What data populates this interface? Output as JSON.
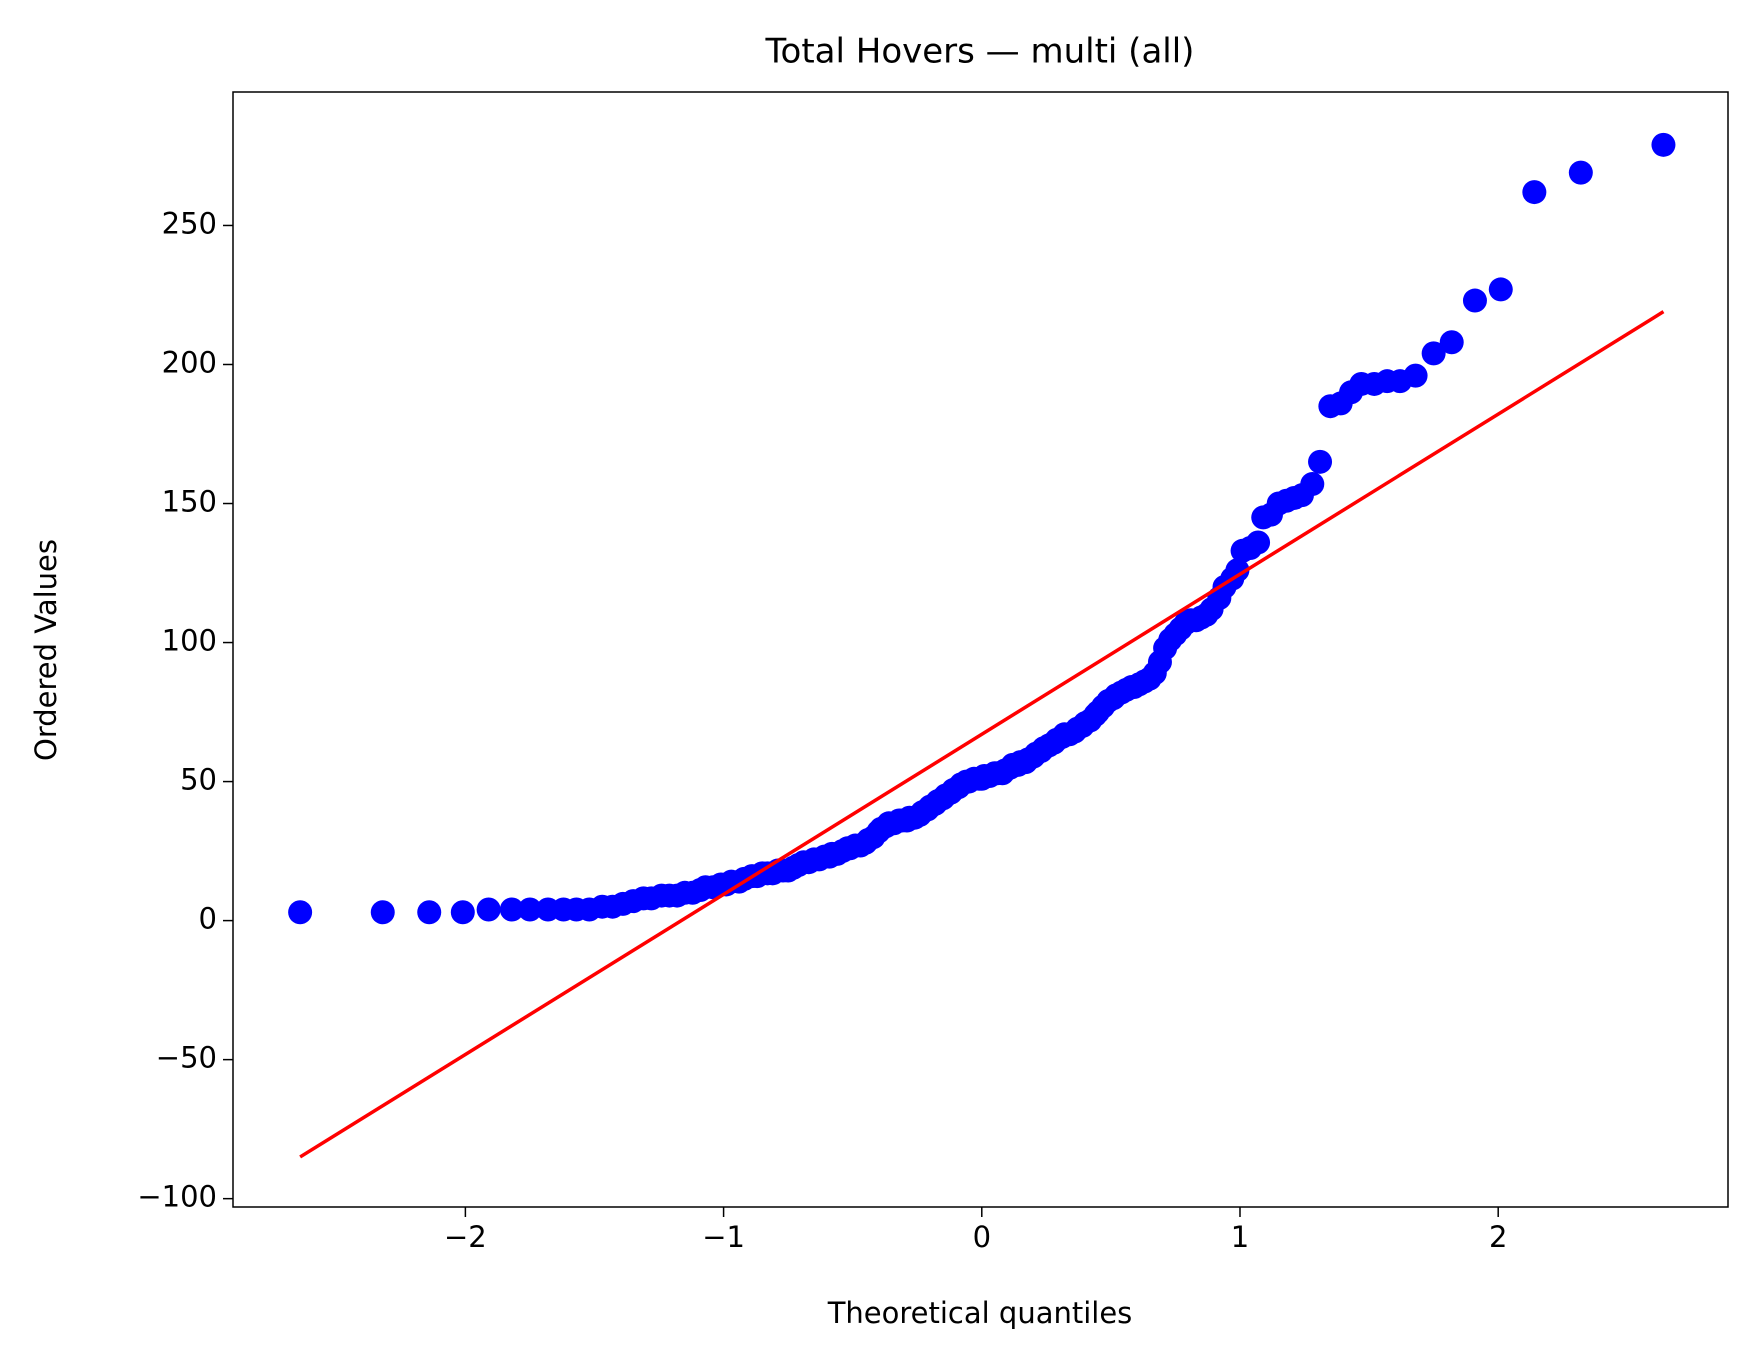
{
  "chart_data": {
    "type": "qq",
    "title": "Total Hovers — multi (all)",
    "x_label": "Theoretical quantiles",
    "y_label": "Ordered Values",
    "xlim": [
      -2.9,
      2.89
    ],
    "ylim": [
      -103,
      298
    ],
    "xticks": [
      {
        "value": -2,
        "label": "−2"
      },
      {
        "value": -1,
        "label": "−1"
      },
      0,
      1,
      2
    ],
    "yticks": [
      {
        "value": -100,
        "label": "−100"
      },
      {
        "value": -50,
        "label": "−50"
      },
      0,
      50,
      100,
      150,
      200,
      250
    ],
    "points": {
      "color": "#0000ff",
      "x": [
        -2.64,
        -2.32,
        -2.14,
        -2.01,
        -1.91,
        -1.82,
        -1.75,
        -1.68,
        -1.62,
        -1.57,
        -1.52,
        -1.47,
        -1.43,
        -1.39,
        -1.35,
        -1.31,
        -1.28,
        -1.24,
        -1.21,
        -1.18,
        -1.15,
        -1.12,
        -1.09,
        -1.07,
        -1.04,
        -1.01,
        -0.99,
        -0.97,
        -0.94,
        -0.92,
        -0.89,
        -0.87,
        -0.85,
        -0.83,
        -0.81,
        -0.79,
        -0.77,
        -0.75,
        -0.73,
        -0.71,
        -0.69,
        -0.67,
        -0.65,
        -0.63,
        -0.61,
        -0.59,
        -0.58,
        -0.56,
        -0.54,
        -0.52,
        -0.51,
        -0.49,
        -0.47,
        -0.45,
        -0.44,
        -0.42,
        -0.4,
        -0.39,
        -0.37,
        -0.36,
        -0.34,
        -0.32,
        -0.31,
        -0.29,
        -0.28,
        -0.26,
        -0.24,
        -0.23,
        -0.21,
        -0.2,
        -0.18,
        -0.17,
        -0.15,
        -0.14,
        -0.12,
        -0.11,
        -0.09,
        -0.08,
        -0.06,
        -0.05,
        -0.03,
        -0.01,
        0,
        0.01,
        0.03,
        0.05,
        0.06,
        0.08,
        0.09,
        0.11,
        0.12,
        0.14,
        0.15,
        0.17,
        0.18,
        0.2,
        0.21,
        0.23,
        0.24,
        0.26,
        0.28,
        0.29,
        0.31,
        0.32,
        0.34,
        0.36,
        0.37,
        0.39,
        0.4,
        0.42,
        0.44,
        0.45,
        0.47,
        0.49,
        0.51,
        0.52,
        0.54,
        0.56,
        0.58,
        0.59,
        0.61,
        0.63,
        0.65,
        0.67,
        0.69,
        0.71,
        0.73,
        0.75,
        0.77,
        0.79,
        0.81,
        0.83,
        0.85,
        0.87,
        0.89,
        0.92,
        0.94,
        0.97,
        0.99,
        1.01,
        1.04,
        1.07,
        1.09,
        1.12,
        1.15,
        1.18,
        1.21,
        1.24,
        1.28,
        1.31,
        1.35,
        1.39,
        1.43,
        1.47,
        1.52,
        1.57,
        1.62,
        1.68,
        1.75,
        1.82,
        1.91,
        2.01,
        2.14,
        2.32,
        2.64
      ],
      "values": [
        3,
        3,
        3,
        3,
        4,
        4,
        4,
        4,
        4,
        4,
        4,
        5,
        5,
        6,
        7,
        8,
        8,
        9,
        9,
        9,
        10,
        10,
        11,
        12,
        12,
        13,
        13,
        14,
        14,
        15,
        16,
        16,
        17,
        17,
        17,
        18,
        18,
        18,
        19,
        20,
        21,
        21,
        22,
        22,
        23,
        23,
        24,
        24,
        25,
        26,
        26,
        27,
        27,
        28,
        29,
        30,
        32,
        33,
        34,
        35,
        35,
        36,
        36,
        36,
        37,
        37,
        38,
        39,
        40,
        41,
        42,
        43,
        44,
        45,
        46,
        47,
        48,
        49,
        50,
        50,
        51,
        51,
        51,
        52,
        52,
        53,
        53,
        53,
        54,
        55,
        56,
        56,
        57,
        57,
        58,
        59,
        60,
        61,
        62,
        63,
        64,
        65,
        66,
        67,
        67,
        68,
        69,
        70,
        71,
        72,
        74,
        75,
        77,
        79,
        80,
        81,
        82,
        83,
        84,
        84,
        85,
        86,
        87,
        89,
        93,
        98,
        101,
        103,
        105,
        107,
        108,
        108,
        109,
        110,
        112,
        116,
        120,
        123,
        126,
        133,
        134,
        136,
        145,
        146,
        150,
        151,
        152,
        153,
        157,
        165,
        185,
        186,
        190,
        193,
        193,
        194,
        194,
        196,
        204,
        208,
        223,
        227,
        262,
        269,
        279
      ]
    },
    "fit": {
      "color": "#ff0000",
      "x": [
        -2.64,
        2.64
      ],
      "values": [
        -85,
        219
      ]
    }
  }
}
